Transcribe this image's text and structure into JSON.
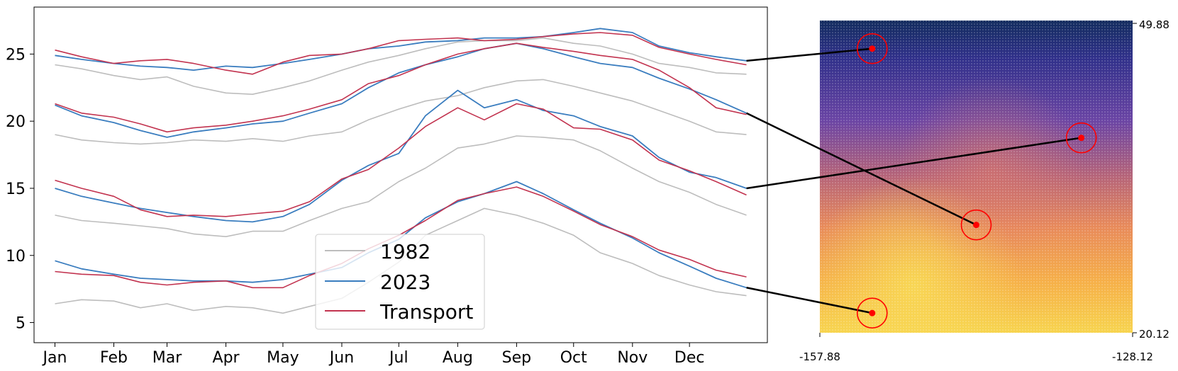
{
  "chart_data": [
    {
      "type": "line",
      "title": "",
      "xlabel": "",
      "ylabel": "",
      "x_tick_labels": [
        "Jan",
        "Feb",
        "Mar",
        "Apr",
        "May",
        "Jun",
        "Jul",
        "Aug",
        "Sep",
        "Oct",
        "Nov",
        "Dec"
      ],
      "x_tick_days": [
        1,
        32,
        60,
        91,
        121,
        152,
        182,
        213,
        244,
        274,
        305,
        335
      ],
      "xlim": [
        -10,
        376
      ],
      "y_ticks": [
        5,
        10,
        15,
        20,
        25
      ],
      "ylim": [
        3.5,
        28.5
      ],
      "legend": {
        "position": "lower-center",
        "entries": [
          "1982",
          "2023",
          "Transport"
        ]
      },
      "colors": {
        "1982": "#bdbdbd",
        "2023": "#3a7dbf",
        "Transport": "#c2334f"
      },
      "x_days": [
        1,
        15,
        32,
        46,
        60,
        74,
        91,
        105,
        121,
        135,
        152,
        166,
        182,
        196,
        213,
        227,
        244,
        258,
        274,
        288,
        305,
        319,
        335,
        349,
        365
      ],
      "series": [
        {
          "station": 1,
          "name": "1982",
          "values": [
            24.2,
            23.9,
            23.4,
            23.1,
            23.3,
            22.6,
            22.1,
            22.0,
            22.5,
            23.0,
            23.8,
            24.4,
            24.9,
            25.4,
            25.9,
            26.0,
            26.0,
            26.2,
            25.8,
            25.6,
            25.0,
            24.3,
            24.0,
            23.6,
            23.5
          ]
        },
        {
          "station": 1,
          "name": "2023",
          "values": [
            24.9,
            24.6,
            24.3,
            24.1,
            24.0,
            23.8,
            24.1,
            24.0,
            24.3,
            24.6,
            25.0,
            25.4,
            25.6,
            25.9,
            26.0,
            26.2,
            26.2,
            26.3,
            26.6,
            26.9,
            26.6,
            25.6,
            25.1,
            24.8,
            24.5
          ]
        },
        {
          "station": 1,
          "name": "Transport",
          "values": [
            25.3,
            24.8,
            24.3,
            24.5,
            24.6,
            24.3,
            23.8,
            23.5,
            24.4,
            24.9,
            25.0,
            25.4,
            26.0,
            26.1,
            26.2,
            26.0,
            26.1,
            26.3,
            26.5,
            26.6,
            26.4,
            25.5,
            25.0,
            24.6,
            24.2
          ]
        },
        {
          "station": 2,
          "name": "1982",
          "values": [
            19.0,
            18.6,
            18.4,
            18.3,
            18.4,
            18.6,
            18.5,
            18.7,
            18.5,
            18.9,
            19.2,
            20.1,
            20.9,
            21.5,
            21.9,
            22.5,
            23.0,
            23.1,
            22.6,
            22.1,
            21.5,
            20.8,
            20.0,
            19.2,
            19.0
          ]
        },
        {
          "station": 2,
          "name": "2023",
          "values": [
            21.2,
            20.4,
            19.9,
            19.3,
            18.8,
            19.2,
            19.5,
            19.8,
            20.0,
            20.6,
            21.3,
            22.5,
            23.6,
            24.2,
            24.8,
            25.4,
            25.8,
            25.4,
            24.8,
            24.3,
            24.0,
            23.2,
            22.4,
            21.6,
            20.6
          ]
        },
        {
          "station": 2,
          "name": "Transport",
          "values": [
            21.3,
            20.6,
            20.3,
            19.8,
            19.2,
            19.5,
            19.7,
            20.0,
            20.4,
            20.9,
            21.6,
            22.8,
            23.4,
            24.2,
            25.0,
            25.4,
            25.8,
            25.5,
            25.2,
            24.9,
            24.6,
            23.8,
            22.5,
            21.0,
            20.5
          ]
        },
        {
          "station": 3,
          "name": "1982",
          "values": [
            13.0,
            12.6,
            12.4,
            12.2,
            12.0,
            11.6,
            11.4,
            11.8,
            11.8,
            12.6,
            13.5,
            14.0,
            15.5,
            16.5,
            18.0,
            18.3,
            18.9,
            18.8,
            18.6,
            17.8,
            16.5,
            15.5,
            14.7,
            13.8,
            13.0
          ]
        },
        {
          "station": 3,
          "name": "2023",
          "values": [
            15.0,
            14.4,
            13.9,
            13.5,
            13.2,
            12.9,
            12.6,
            12.5,
            12.9,
            13.8,
            15.6,
            16.7,
            17.6,
            20.4,
            22.3,
            21.0,
            21.6,
            20.8,
            20.4,
            19.6,
            18.9,
            17.3,
            16.2,
            15.8,
            15.0
          ]
        },
        {
          "station": 3,
          "name": "Transport",
          "values": [
            15.6,
            15.0,
            14.4,
            13.4,
            12.9,
            13.0,
            12.9,
            13.1,
            13.3,
            14.0,
            15.7,
            16.4,
            18.0,
            19.6,
            21.0,
            20.1,
            21.3,
            20.9,
            19.5,
            19.4,
            18.6,
            17.1,
            16.3,
            15.5,
            14.5
          ]
        },
        {
          "station": 4,
          "name": "1982",
          "values": [
            6.4,
            6.7,
            6.6,
            6.1,
            6.4,
            5.9,
            6.2,
            6.1,
            5.7,
            6.2,
            6.8,
            8.0,
            9.5,
            11.5,
            12.6,
            13.5,
            13.0,
            12.4,
            11.5,
            10.2,
            9.4,
            8.5,
            7.8,
            7.3,
            7.0
          ]
        },
        {
          "station": 4,
          "name": "2023",
          "values": [
            9.6,
            9.0,
            8.6,
            8.3,
            8.2,
            8.1,
            8.1,
            8.0,
            8.2,
            8.6,
            9.1,
            10.2,
            11.2,
            12.8,
            14.0,
            14.6,
            15.5,
            14.6,
            13.4,
            12.4,
            11.3,
            10.2,
            9.2,
            8.3,
            7.6
          ]
        },
        {
          "station": 4,
          "name": "Transport",
          "values": [
            8.8,
            8.6,
            8.5,
            8.0,
            7.8,
            8.0,
            8.1,
            7.6,
            7.6,
            8.5,
            9.4,
            10.5,
            11.5,
            12.6,
            14.1,
            14.6,
            15.1,
            14.4,
            13.3,
            12.3,
            11.4,
            10.4,
            9.7,
            8.9,
            8.4
          ]
        }
      ]
    },
    {
      "type": "heatmap",
      "title": "",
      "x_tick_labels": [
        "-157.88",
        "-128.12"
      ],
      "y_tick_labels": [
        "49.88",
        "20.12"
      ],
      "xlim": [
        -157.88,
        -128.12
      ],
      "ylim": [
        20.12,
        49.88
      ],
      "colormap": {
        "top": "#0e2a5c",
        "middle": "#c86a6a",
        "bottom": "#f5d75a"
      },
      "marker_color": "#ff0000",
      "connector_color": "#000000",
      "stations": [
        {
          "id": 1,
          "lon": -152.9,
          "lat": 47.2
        },
        {
          "id": 2,
          "lon": -143.0,
          "lat": 30.4
        },
        {
          "id": 3,
          "lon": -133.0,
          "lat": 38.7
        },
        {
          "id": 4,
          "lon": -152.9,
          "lat": 22.0
        }
      ]
    }
  ]
}
